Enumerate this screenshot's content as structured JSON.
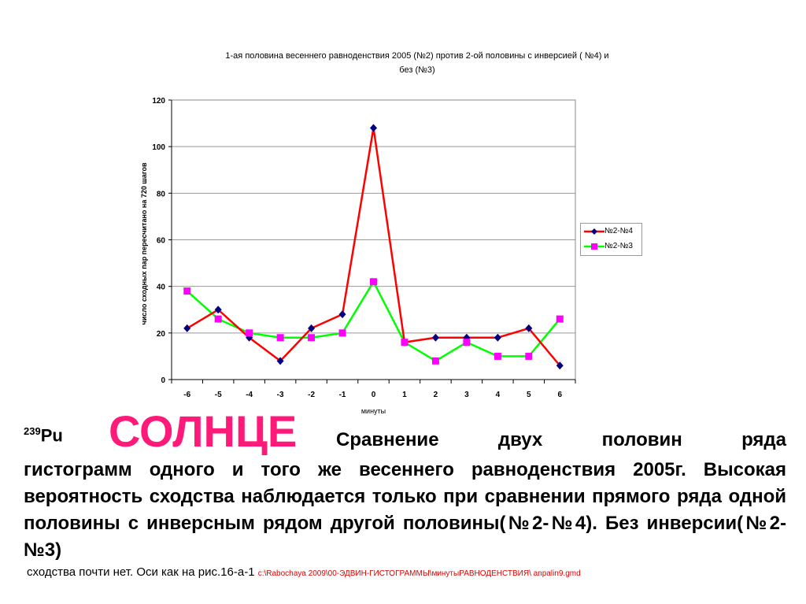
{
  "chart_data": {
    "type": "line",
    "title_line1": "1-ая половина весеннего равноденствия 2005 (№2) против 2-ой половины с инверсией ( №4) и",
    "title_line2": "без (№3)",
    "xlabel": "минуты",
    "ylabel": "число сходных пар пересчитано на 720 шагов",
    "categories": [
      "-6",
      "-5",
      "-4",
      "-3",
      "-2",
      "-1",
      "0",
      "1",
      "2",
      "3",
      "4",
      "5",
      "6"
    ],
    "yticks": [
      "0",
      "20",
      "40",
      "60",
      "80",
      "100",
      "120"
    ],
    "ylim": [
      0,
      120
    ],
    "grid": true,
    "legend_position": "right",
    "series": [
      {
        "name": "№2-№4",
        "color": "#ff0000",
        "marker_color": "#000080",
        "marker": "diamond",
        "values": [
          22,
          30,
          18,
          8,
          22,
          28,
          108,
          16,
          18,
          18,
          18,
          22,
          6
        ]
      },
      {
        "name": "№2-№3",
        "color": "#00ff00",
        "marker_color": "#ff00ff",
        "marker": "square",
        "values": [
          38,
          26,
          20,
          18,
          18,
          20,
          42,
          16,
          8,
          16,
          10,
          10,
          26
        ]
      }
    ]
  },
  "text": {
    "isotope_mass": "239",
    "isotope": "Pu",
    "heading": "СОЛНЦЕ",
    "line1": "Сравнение двух половин ряда",
    "body": "гистограмм одного и того же весеннего равноденствия 2005г. Высокая вероятность сходства наблюдается только при сравнении прямого ряда одной половины с инверсным рядом другой половины(№2-№4). Без инверсии(№2-№3)",
    "footer": "сходства почти нет. Оси как на рис.16-а-1 ",
    "path": "c:\\Rabochaya 2009\\00-ЭДВИН-ГИСТОГРАММЫ\\минутыРАВНОДЕНСТВИЯ\\ anpalin9.gmd"
  }
}
